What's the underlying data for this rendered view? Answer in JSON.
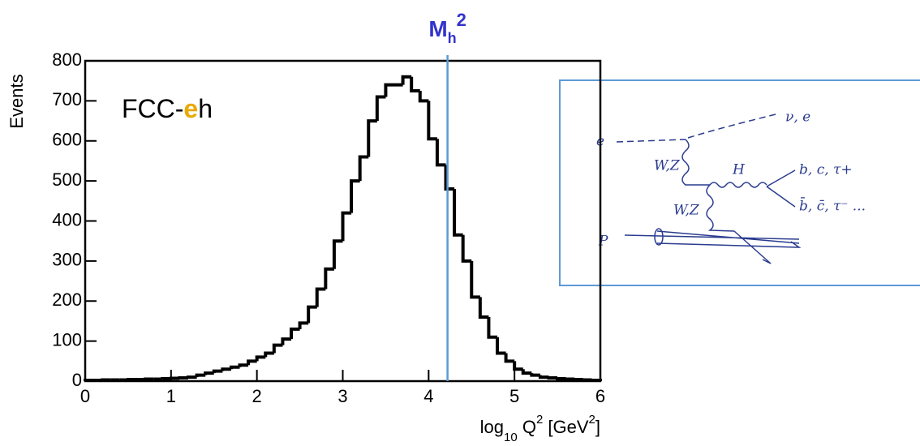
{
  "chart_data": {
    "type": "histogram",
    "bins": [
      0,
      0.1,
      0.2,
      0.3,
      0.4,
      0.5,
      0.6,
      0.7,
      0.8,
      0.9,
      1.0,
      1.1,
      1.2,
      1.3,
      1.4,
      1.5,
      1.6,
      1.7,
      1.8,
      1.9,
      2.0,
      2.1,
      2.2,
      2.3,
      2.4,
      2.5,
      2.6,
      2.7,
      2.8,
      2.9,
      3.0,
      3.1,
      3.2,
      3.3,
      3.4,
      3.5,
      3.6,
      3.7,
      3.8,
      3.9,
      4.0,
      4.1,
      4.2,
      4.3,
      4.4,
      4.5,
      4.6,
      4.7,
      4.8,
      4.9,
      5.0,
      5.1,
      5.2,
      5.3,
      5.4,
      5.5,
      5.6,
      5.7,
      5.8,
      5.9,
      6.0
    ],
    "counts": [
      2,
      2,
      3,
      3,
      3,
      4,
      4,
      5,
      5,
      6,
      7,
      8,
      10,
      15,
      20,
      25,
      30,
      35,
      40,
      50,
      60,
      70,
      90,
      105,
      130,
      145,
      185,
      230,
      280,
      350,
      420,
      500,
      560,
      650,
      710,
      740,
      740,
      760,
      725,
      700,
      605,
      540,
      480,
      365,
      300,
      210,
      160,
      110,
      70,
      50,
      30,
      20,
      15,
      10,
      8,
      6,
      5,
      4,
      3,
      2
    ],
    "color": "#000000",
    "xlim": [
      0,
      6
    ],
    "xticks": [
      0,
      1,
      2,
      3,
      4,
      5,
      6
    ],
    "ylim": [
      0,
      800
    ],
    "yticks": [
      0,
      100,
      200,
      300,
      400,
      500,
      600,
      700,
      800
    ],
    "ylabel": "Events",
    "xlabel": [
      "log",
      "10",
      " Q",
      "2",
      " [GeV",
      "2",
      "]"
    ],
    "annotation": [
      "FCC-",
      "e",
      "h"
    ],
    "vline": {
      "x": 4.22,
      "color": "#5b9bd5",
      "label": [
        "M",
        "h",
        "2"
      ]
    }
  },
  "inset": {
    "labels": [
      "e",
      "ν, e",
      "W,Z",
      "H",
      "b, c, τ+",
      "b̄, c̄, τ⁻ ...",
      "W,Z",
      "P"
    ]
  }
}
